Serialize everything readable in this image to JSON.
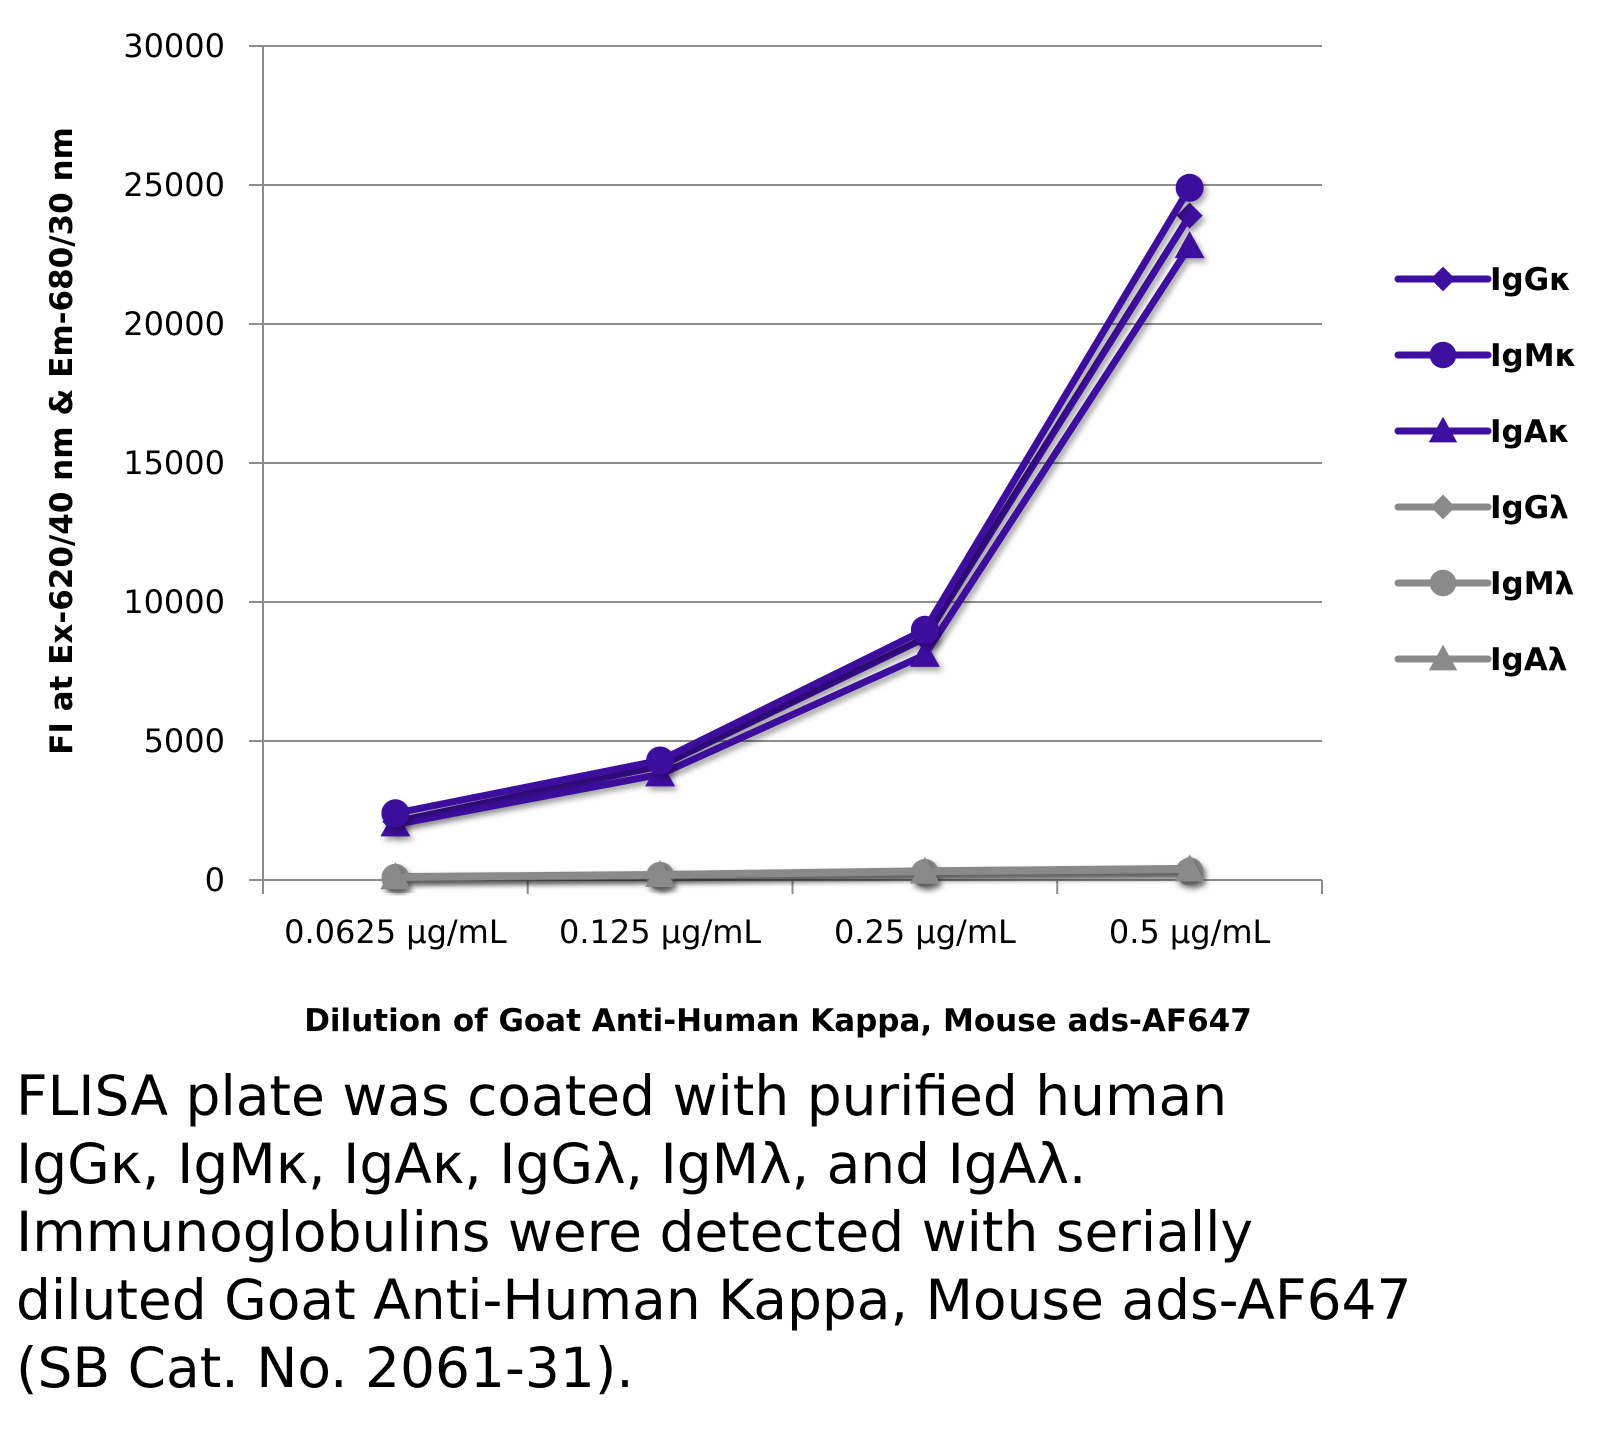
{
  "chart_data": {
    "type": "line",
    "categories": [
      "0.0625 µg/mL",
      "0.125 µg/mL",
      "0.25 µg/mL",
      "0.5 µg/mL"
    ],
    "xlabel": "Dilution of Goat Anti-Human Kappa, Mouse ads-AF647",
    "ylabel": "FI at Ex-620/40 nm & Em-680/30 nm",
    "ylim": [
      0,
      30000
    ],
    "yticks": [
      0,
      5000,
      10000,
      15000,
      20000,
      25000,
      30000
    ],
    "grid": true,
    "legend": "right",
    "series": [
      {
        "name": "IgGκ",
        "marker": "diamond",
        "color": "#3d0f9e",
        "values": [
          2100,
          4100,
          8700,
          23900
        ]
      },
      {
        "name": "IgMκ",
        "marker": "circle",
        "color": "#3d0f9e",
        "values": [
          2400,
          4300,
          9000,
          24900
        ]
      },
      {
        "name": "IgAκ",
        "marker": "triangle",
        "color": "#3d0f9e",
        "values": [
          2000,
          3800,
          8100,
          22800
        ]
      },
      {
        "name": "IgGλ",
        "marker": "diamond",
        "color": "#8a8a8a",
        "values": [
          120,
          200,
          330,
          420
        ]
      },
      {
        "name": "IgMλ",
        "marker": "circle",
        "color": "#8a8a8a",
        "values": [
          80,
          150,
          250,
          300
        ]
      },
      {
        "name": "IgAλ",
        "marker": "triangle",
        "color": "#8a8a8a",
        "values": [
          100,
          180,
          300,
          380
        ]
      }
    ]
  },
  "caption": {
    "lines": [
      "FLISA plate was coated with purified human",
      "IgGκ, IgMκ, IgAκ, IgGλ, IgMλ, and IgAλ.",
      "Immunoglobulins were detected with serially",
      "diluted Goat Anti-Human Kappa, Mouse ads-AF647",
      "(SB Cat. No. 2061-31)."
    ]
  }
}
